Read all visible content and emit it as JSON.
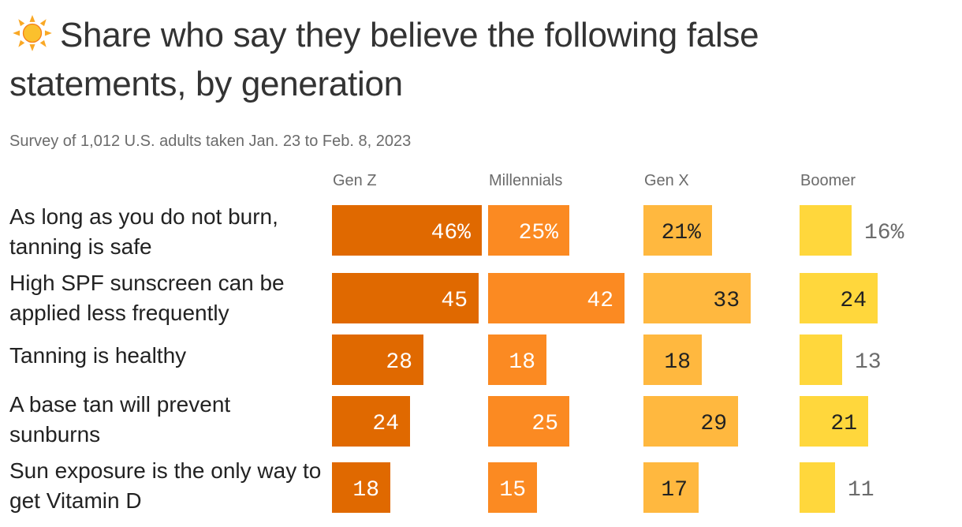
{
  "title": "Share who say they believe the following false statements, by generation",
  "subtitle": "Survey of 1,012 U.S. adults taken Jan. 23 to Feb. 8, 2023",
  "colors": {
    "Gen Z": "#e06900",
    "Millennials": "#fb8a22",
    "Gen X": "#ffb83f",
    "Boomer": "#ffd73c",
    "label_inside_dark": "#ffffff",
    "label_inside_light": "#222222",
    "label_outside": "#6b6b6b"
  },
  "chart_data": {
    "type": "bar",
    "orientation": "horizontal",
    "layout": "small-multiples",
    "categories": [
      "As long as you do not burn, tanning is safe",
      "High SPF sunscreen can be applied less frequently",
      "Tanning is healthy",
      "A base tan will prevent sunburns",
      "Sun exposure is the only way to get Vitamin D"
    ],
    "series": [
      {
        "name": "Gen Z",
        "values": [
          46,
          45,
          28,
          24,
          18
        ]
      },
      {
        "name": "Millennials",
        "values": [
          25,
          42,
          18,
          25,
          15
        ]
      },
      {
        "name": "Gen X",
        "values": [
          21,
          33,
          18,
          29,
          17
        ]
      },
      {
        "name": "Boomer",
        "values": [
          16,
          24,
          13,
          21,
          11
        ]
      }
    ],
    "value_labels": [
      [
        "46%",
        "25%",
        "21%",
        "16%"
      ],
      [
        "45",
        "42",
        "33",
        "24"
      ],
      [
        "28",
        "18",
        "18",
        "13"
      ],
      [
        "24",
        "25",
        "29",
        "21"
      ],
      [
        "18",
        "15",
        "17",
        "11"
      ]
    ],
    "unit": "%",
    "xlim": [
      0,
      46
    ],
    "grid": false
  }
}
